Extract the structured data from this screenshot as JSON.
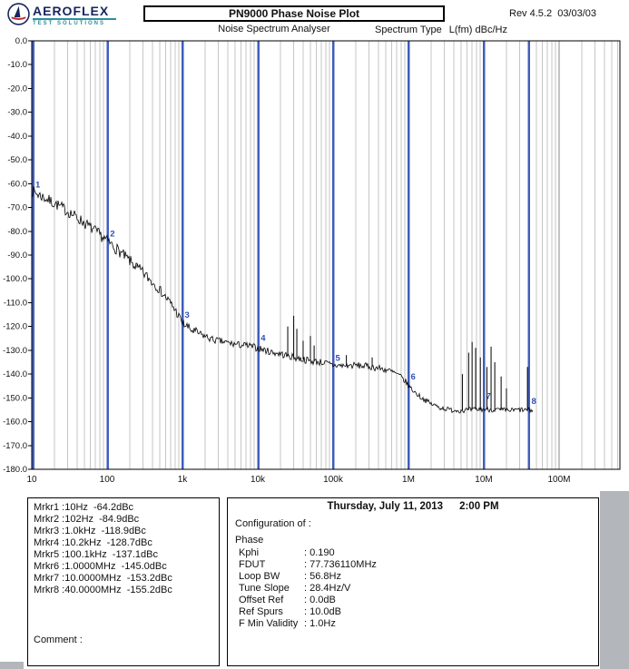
{
  "header": {
    "logo": {
      "brand": "AEROFLEX",
      "tagline": "TEST SOLUTIONS"
    },
    "title": "PN9000 Phase Noise Plot",
    "revision": "Rev 4.5.2  03/03/03",
    "subtitle": "Noise Spectrum Analyser",
    "spectrum_type_label": "Spectrum Type",
    "spectrum_type_value": "L(fm) dBc/Hz"
  },
  "chart_data": {
    "type": "line",
    "title": "PN9000 Phase Noise Plot",
    "x_axis": {
      "scale": "log",
      "unit": "Hz",
      "min": 10,
      "max": 100000000,
      "tick_values": [
        10,
        100,
        1000,
        10000,
        100000,
        1000000,
        10000000,
        100000000
      ],
      "tick_labels": [
        "10",
        "100",
        "1k",
        "10k",
        "100k",
        "1M",
        "10M",
        "100M"
      ]
    },
    "y_axis": {
      "unit": "dBc/Hz",
      "min": -180,
      "max": 0,
      "tick_step": 10,
      "tick_labels": [
        "0.0",
        "-10.0",
        "-20.0",
        "-30.0",
        "-40.0",
        "-50.0",
        "-60.0",
        "-70.0",
        "-80.0",
        "-90.0",
        "-100.0",
        "-110.0",
        "-120.0",
        "-130.0",
        "-140.0",
        "-150.0",
        "-160.0",
        "-170.0",
        "-180.0"
      ]
    },
    "grid": {
      "vertical_log_minor": true,
      "decade_lines": true
    },
    "marker_line_color": "#3050b8",
    "trace_color": "#000000",
    "series": [
      {
        "name": "phase-noise-trace",
        "curve": [
          [
            10,
            -63
          ],
          [
            13,
            -65
          ],
          [
            18,
            -67.5
          ],
          [
            25,
            -70
          ],
          [
            35,
            -73
          ],
          [
            50,
            -76.5
          ],
          [
            70,
            -80
          ],
          [
            100,
            -84
          ],
          [
            140,
            -88
          ],
          [
            200,
            -92.5
          ],
          [
            300,
            -97.5
          ],
          [
            450,
            -103
          ],
          [
            650,
            -109
          ],
          [
            800,
            -113
          ],
          [
            1000,
            -118.5
          ],
          [
            1300,
            -121.5
          ],
          [
            1800,
            -123.5
          ],
          [
            2500,
            -125.5
          ],
          [
            3500,
            -126.5
          ],
          [
            5000,
            -127.5
          ],
          [
            7000,
            -128
          ],
          [
            10000,
            -129
          ],
          [
            14000,
            -130.5
          ],
          [
            20000,
            -131.5
          ],
          [
            30000,
            -133
          ],
          [
            50000,
            -134.5
          ],
          [
            70000,
            -135
          ],
          [
            100000,
            -136.3
          ],
          [
            140000,
            -136.5
          ],
          [
            200000,
            -136.3
          ],
          [
            300000,
            -136.8
          ],
          [
            400000,
            -137.5
          ],
          [
            550000,
            -138.5
          ],
          [
            700000,
            -140
          ],
          [
            850000,
            -142
          ],
          [
            1000000,
            -144.8
          ],
          [
            1200000,
            -147.5
          ],
          [
            1500000,
            -150
          ],
          [
            2000000,
            -152.5
          ],
          [
            2600000,
            -154
          ],
          [
            3500000,
            -155
          ],
          [
            5000000,
            -155.3
          ],
          [
            7000000,
            -155
          ],
          [
            10000000,
            -154.8
          ],
          [
            15000000,
            -155
          ],
          [
            22000000,
            -155.3
          ],
          [
            30000000,
            -155
          ],
          [
            45000000,
            -155.3
          ]
        ]
      }
    ],
    "spurs": [
      [
        250,
        -94
      ],
      [
        25000,
        -120
      ],
      [
        30000,
        -115.5
      ],
      [
        33000,
        -121
      ],
      [
        40000,
        -126
      ],
      [
        50000,
        -124
      ],
      [
        56000,
        -128
      ],
      [
        150000,
        -132
      ],
      [
        330000,
        -133
      ],
      [
        5200000,
        -140
      ],
      [
        6300000,
        -131
      ],
      [
        7000000,
        -126.5
      ],
      [
        7800000,
        -129
      ],
      [
        9000000,
        -133
      ],
      [
        11000000,
        -137
      ],
      [
        12500000,
        -128.5
      ],
      [
        14000000,
        -135
      ],
      [
        17000000,
        -141
      ],
      [
        20000000,
        -146
      ],
      [
        38000000,
        -137
      ]
    ],
    "markers": [
      {
        "n": "1",
        "f": 10,
        "dB": -64.2
      },
      {
        "n": "2",
        "f": 102,
        "dB": -84.9
      },
      {
        "n": "3",
        "f": 1000,
        "dB": -118.9
      },
      {
        "n": "4",
        "f": 10200,
        "dB": -128.7
      },
      {
        "n": "5",
        "f": 100100,
        "dB": -137.1
      },
      {
        "n": "6",
        "f": 1000000,
        "dB": -145.0
      },
      {
        "n": "7",
        "f": 10000000,
        "dB": -153.2
      },
      {
        "n": "8",
        "f": 40000000,
        "dB": -155.2
      }
    ]
  },
  "marker_panel": {
    "lines": [
      "Mrkr1 :10Hz  -64.2dBc",
      "Mrkr2 :102Hz  -84.9dBc",
      "Mrkr3 :1.0kHz  -118.9dBc",
      "Mrkr4 :10.2kHz  -128.7dBc",
      "Mrkr5 :100.1kHz  -137.1dBc",
      "Mrkr6 :1.0000MHz  -145.0dBc",
      "Mrkr7 :10.0000MHz  -153.2dBc",
      "Mrkr8 :40.0000MHz  -155.2dBc"
    ],
    "comment_label": "Comment :"
  },
  "config_panel": {
    "date": "Thursday, July 11, 2013",
    "time": "2:00 PM",
    "heading": "Configuration of :",
    "subject": "Phase",
    "rows": [
      {
        "label": "Kphi",
        "value": ": 0.190"
      },
      {
        "label": "FDUT",
        "value": ": 77.736110MHz"
      },
      {
        "label": "Loop BW",
        "value": ": 56.8Hz"
      },
      {
        "label": "Tune Slope",
        "value": ": 28.4Hz/V"
      },
      {
        "label": "Offset Ref",
        "value": ": 0.0dB"
      },
      {
        "label": "Ref Spurs",
        "value": ": 10.0dB"
      },
      {
        "label": "F Min Validity",
        "value": ": 1.0Hz"
      }
    ]
  }
}
